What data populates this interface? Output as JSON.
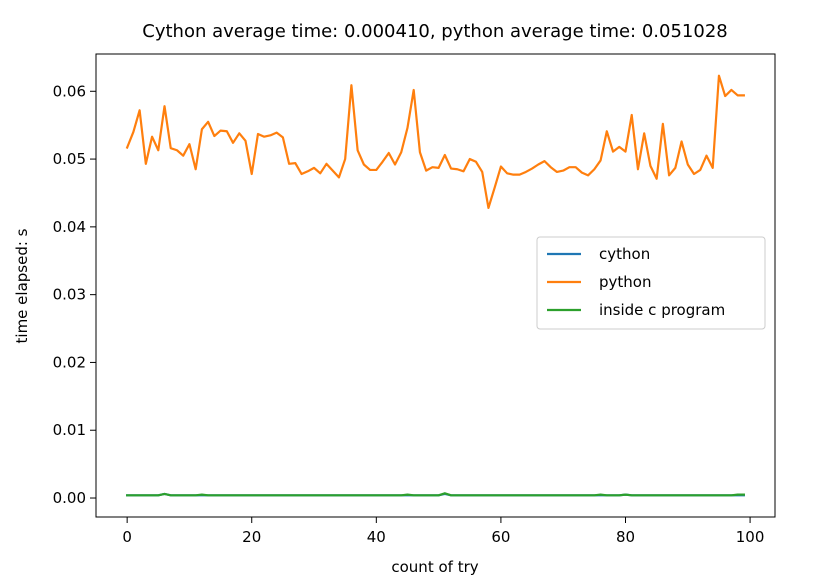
{
  "chart_data": {
    "type": "line",
    "title": "Cython average time: 0.000410, python average time: 0.051028",
    "xlabel": "count of try",
    "ylabel": "time elapsed: s",
    "xlim": [
      -5,
      104
    ],
    "ylim": [
      -0.0028,
      0.0655
    ],
    "xticks": [
      0,
      20,
      40,
      60,
      80,
      100
    ],
    "xtick_labels": [
      "0",
      "20",
      "40",
      "60",
      "80",
      "100"
    ],
    "yticks": [
      0.0,
      0.01,
      0.02,
      0.03,
      0.04,
      0.05,
      0.06
    ],
    "ytick_labels": [
      "0.00",
      "0.01",
      "0.02",
      "0.03",
      "0.04",
      "0.05",
      "0.06"
    ],
    "grid": false,
    "legend_position": "center-right",
    "series": [
      {
        "name": "cython",
        "color": "#1f77b4",
        "values": [
          0.0004,
          0.0004,
          0.0004,
          0.0004,
          0.0004,
          0.0004,
          0.0006,
          0.0004,
          0.0004,
          0.0004,
          0.0004,
          0.0004,
          0.0004,
          0.0004,
          0.0004,
          0.0004,
          0.0004,
          0.0004,
          0.0004,
          0.0004,
          0.0004,
          0.0004,
          0.0004,
          0.0004,
          0.0004,
          0.0004,
          0.0004,
          0.0004,
          0.0004,
          0.0004,
          0.0004,
          0.0004,
          0.0004,
          0.0004,
          0.0004,
          0.0004,
          0.0004,
          0.0004,
          0.0004,
          0.0004,
          0.0004,
          0.0004,
          0.0004,
          0.0004,
          0.0004,
          0.0004,
          0.0004,
          0.0004,
          0.0004,
          0.0004,
          0.0004,
          0.0006,
          0.0004,
          0.0004,
          0.0004,
          0.0004,
          0.0004,
          0.0004,
          0.0004,
          0.0004,
          0.0004,
          0.0004,
          0.0004,
          0.0004,
          0.0004,
          0.0004,
          0.0004,
          0.0004,
          0.0004,
          0.0004,
          0.0004,
          0.0004,
          0.0004,
          0.0004,
          0.0004,
          0.0004,
          0.0004,
          0.0004,
          0.0004,
          0.0004,
          0.0005,
          0.0004,
          0.0004,
          0.0004,
          0.0004,
          0.0004,
          0.0004,
          0.0004,
          0.0004,
          0.0004,
          0.0004,
          0.0004,
          0.0004,
          0.0004,
          0.0004,
          0.0004,
          0.0004,
          0.0004,
          0.0004,
          0.0004
        ]
      },
      {
        "name": "python",
        "color": "#ff7f0e",
        "values": [
          0.0517,
          0.054,
          0.0572,
          0.0493,
          0.0533,
          0.0513,
          0.0578,
          0.0516,
          0.0513,
          0.0505,
          0.0522,
          0.0485,
          0.0544,
          0.0555,
          0.0534,
          0.0542,
          0.0541,
          0.0524,
          0.0538,
          0.0527,
          0.0478,
          0.0537,
          0.0533,
          0.0535,
          0.0539,
          0.0532,
          0.0493,
          0.0494,
          0.0478,
          0.0482,
          0.0487,
          0.0479,
          0.0493,
          0.0483,
          0.0473,
          0.05,
          0.0609,
          0.0513,
          0.0492,
          0.0484,
          0.0484,
          0.0496,
          0.0509,
          0.0492,
          0.051,
          0.0546,
          0.0602,
          0.051,
          0.0483,
          0.0488,
          0.0487,
          0.0506,
          0.0486,
          0.0485,
          0.0482,
          0.05,
          0.0496,
          0.0481,
          0.0428,
          0.0458,
          0.0489,
          0.0479,
          0.0477,
          0.0477,
          0.0481,
          0.0486,
          0.0492,
          0.0497,
          0.0488,
          0.0481,
          0.0483,
          0.0488,
          0.0488,
          0.048,
          0.0476,
          0.0485,
          0.0498,
          0.0541,
          0.0511,
          0.0518,
          0.0511,
          0.0565,
          0.0485,
          0.0538,
          0.049,
          0.0471,
          0.0552,
          0.0476,
          0.0487,
          0.0526,
          0.0492,
          0.0478,
          0.0484,
          0.0505,
          0.0487,
          0.0623,
          0.0593,
          0.0602,
          0.0594,
          0.0594
        ]
      },
      {
        "name": "inside c program",
        "color": "#2ca02c",
        "values": [
          0.0004,
          0.0004,
          0.0004,
          0.0004,
          0.0004,
          0.0004,
          0.0006,
          0.0004,
          0.0004,
          0.0004,
          0.0004,
          0.0004,
          0.0005,
          0.0004,
          0.0004,
          0.0004,
          0.0004,
          0.0004,
          0.0004,
          0.0004,
          0.0004,
          0.0004,
          0.0004,
          0.0004,
          0.0004,
          0.0004,
          0.0004,
          0.0004,
          0.0004,
          0.0004,
          0.0004,
          0.0004,
          0.0004,
          0.0004,
          0.0004,
          0.0004,
          0.0004,
          0.0004,
          0.0004,
          0.0004,
          0.0004,
          0.0004,
          0.0004,
          0.0004,
          0.0004,
          0.0005,
          0.0004,
          0.0004,
          0.0004,
          0.0004,
          0.0004,
          0.0007,
          0.0004,
          0.0004,
          0.0004,
          0.0004,
          0.0004,
          0.0004,
          0.0004,
          0.0004,
          0.0004,
          0.0004,
          0.0004,
          0.0004,
          0.0004,
          0.0004,
          0.0004,
          0.0004,
          0.0004,
          0.0004,
          0.0004,
          0.0004,
          0.0004,
          0.0004,
          0.0004,
          0.0004,
          0.0005,
          0.0004,
          0.0004,
          0.0004,
          0.0005,
          0.0004,
          0.0004,
          0.0004,
          0.0004,
          0.0004,
          0.0004,
          0.0004,
          0.0004,
          0.0004,
          0.0004,
          0.0004,
          0.0004,
          0.0004,
          0.0004,
          0.0004,
          0.0004,
          0.0004,
          0.0005,
          0.0005
        ]
      }
    ]
  }
}
